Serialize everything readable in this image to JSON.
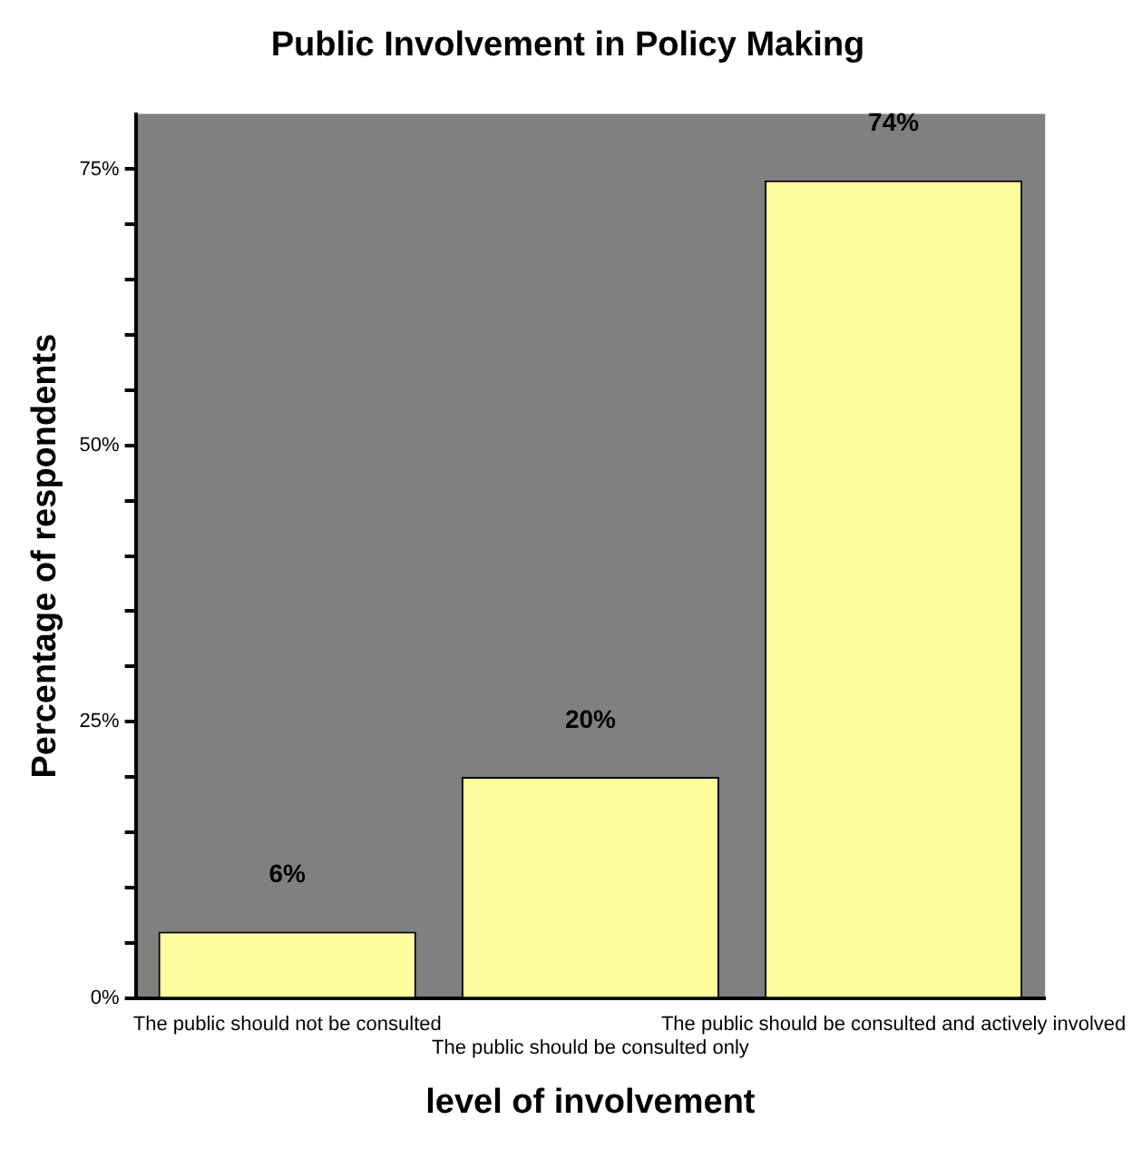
{
  "chart_data": {
    "type": "bar",
    "title": "Public Involvement in Policy Making",
    "xlabel": "level of involvement",
    "ylabel": "Percentage of respondents",
    "categories": [
      "The public should not be consulted",
      "The public should be consulted only",
      "The public should be consulted and actively involved"
    ],
    "values": [
      6,
      20,
      74
    ],
    "value_labels": [
      "6%",
      "20%",
      "74%"
    ],
    "color": "#ffffa0",
    "ylim": [
      0,
      80
    ],
    "yticks": [
      {
        "value": 0,
        "label": "0%"
      },
      {
        "value": 5,
        "label": null
      },
      {
        "value": 10,
        "label": null
      },
      {
        "value": 15,
        "label": null
      },
      {
        "value": 20,
        "label": null
      },
      {
        "value": 25,
        "label": "25%"
      },
      {
        "value": 30,
        "label": null
      },
      {
        "value": 35,
        "label": null
      },
      {
        "value": 40,
        "label": null
      },
      {
        "value": 45,
        "label": null
      },
      {
        "value": 50,
        "label": "50%"
      },
      {
        "value": 55,
        "label": null
      },
      {
        "value": 60,
        "label": null
      },
      {
        "value": 65,
        "label": null
      },
      {
        "value": 70,
        "label": null
      },
      {
        "value": 75,
        "label": "75%"
      }
    ],
    "grid": false,
    "legend": false
  }
}
